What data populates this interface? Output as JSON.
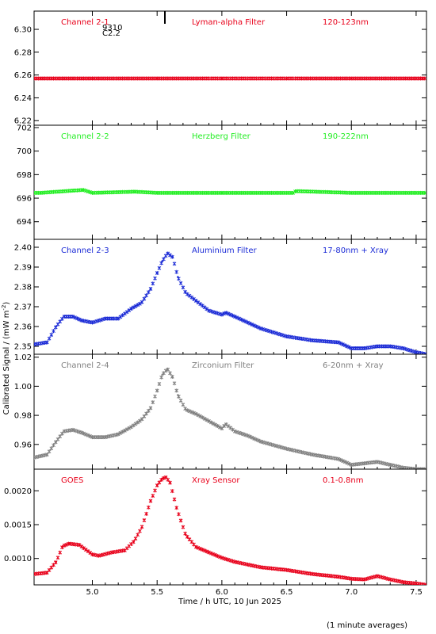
{
  "figure": {
    "xlabel": "Time / h UTC, 10 Jun 2025",
    "ylabel": "Calibrated Signal / (mW m",
    "ylabel_sup": "-2",
    "ylabel_end": ")",
    "footnote": "(1 minute averages)",
    "overlay_top": "9310",
    "overlay_bottom": "C2.2"
  },
  "chart_data": [
    {
      "type": "scatter",
      "channel": "Channel 2-1",
      "filter": "Lyman-alpha Filter",
      "band": "120-123nm",
      "color": "#e8001a",
      "xlim": [
        4.55,
        7.58
      ],
      "ylim": [
        6.216,
        6.316
      ],
      "yticks": [
        6.22,
        6.24,
        6.26,
        6.28,
        6.3
      ],
      "ytick_labels": [
        "6.22",
        "6.24",
        "6.26",
        "6.28",
        "6.30"
      ],
      "x": [
        4.6,
        5.0,
        5.5,
        6.0,
        6.5,
        7.0,
        7.55
      ],
      "y": [
        6.257,
        6.257,
        6.257,
        6.257,
        6.257,
        6.257,
        6.257
      ]
    },
    {
      "type": "scatter",
      "channel": "Channel 2-2",
      "filter": "Herzberg Filter",
      "band": "190-222nm",
      "color": "#22ee22",
      "xlim": [
        4.55,
        7.58
      ],
      "ylim": [
        692.5,
        702.2
      ],
      "yticks": [
        694,
        696,
        698,
        700,
        702
      ],
      "ytick_labels": [
        "694",
        "696",
        "698",
        "700",
        "702"
      ],
      "x": [
        4.6,
        4.93,
        5.0,
        5.33,
        5.5,
        6.0,
        6.55,
        6.57,
        7.0,
        7.55
      ],
      "y": [
        696.45,
        696.7,
        696.45,
        696.55,
        696.45,
        696.45,
        696.45,
        696.6,
        696.45,
        696.45
      ]
    },
    {
      "type": "scatter",
      "channel": "Channel 2-3",
      "filter": "Aluminium Filter",
      "band": "17-80nm + Xray",
      "color": "#1a2ad6",
      "xlim": [
        4.55,
        7.58
      ],
      "ylim": [
        2.346,
        2.404
      ],
      "yticks": [
        2.35,
        2.36,
        2.37,
        2.38,
        2.39,
        2.4
      ],
      "ytick_labels": [
        "2.35",
        "2.36",
        "2.37",
        "2.38",
        "2.39",
        "2.40"
      ],
      "x": [
        4.55,
        4.65,
        4.72,
        4.78,
        4.85,
        4.92,
        5.0,
        5.1,
        5.2,
        5.3,
        5.38,
        5.45,
        5.5,
        5.54,
        5.58,
        5.62,
        5.66,
        5.72,
        5.8,
        5.9,
        6.0,
        6.03,
        6.1,
        6.2,
        6.3,
        6.5,
        6.7,
        6.9,
        7.0,
        7.1,
        7.2,
        7.3,
        7.4,
        7.5,
        7.58
      ],
      "y": [
        2.351,
        2.352,
        2.36,
        2.365,
        2.365,
        2.363,
        2.362,
        2.364,
        2.364,
        2.369,
        2.372,
        2.379,
        2.387,
        2.393,
        2.397,
        2.395,
        2.385,
        2.377,
        2.373,
        2.368,
        2.366,
        2.367,
        2.365,
        2.362,
        2.359,
        2.355,
        2.353,
        2.352,
        2.349,
        2.349,
        2.35,
        2.35,
        2.349,
        2.347,
        2.346
      ]
    },
    {
      "type": "scatter",
      "channel": "Channel 2-4",
      "filter": "Zirconium Filter",
      "band": "6-20nm + Xray",
      "color": "#808080",
      "xlim": [
        4.55,
        7.58
      ],
      "ylim": [
        0.943,
        1.022
      ],
      "yticks": [
        0.96,
        0.98,
        1.0,
        1.02
      ],
      "ytick_labels": [
        "0.96",
        "0.98",
        "1.00",
        "1.02"
      ],
      "x": [
        4.55,
        4.65,
        4.72,
        4.78,
        4.85,
        4.92,
        5.0,
        5.1,
        5.2,
        5.3,
        5.38,
        5.45,
        5.5,
        5.54,
        5.58,
        5.62,
        5.66,
        5.72,
        5.8,
        5.9,
        6.0,
        6.03,
        6.1,
        6.2,
        6.3,
        6.5,
        6.7,
        6.9,
        7.0,
        7.1,
        7.2,
        7.3,
        7.4,
        7.5,
        7.58
      ],
      "y": [
        0.951,
        0.953,
        0.962,
        0.969,
        0.97,
        0.968,
        0.965,
        0.965,
        0.967,
        0.972,
        0.977,
        0.985,
        0.997,
        1.008,
        1.012,
        1.006,
        0.994,
        0.984,
        0.981,
        0.976,
        0.971,
        0.974,
        0.969,
        0.966,
        0.962,
        0.957,
        0.953,
        0.95,
        0.946,
        0.947,
        0.948,
        0.946,
        0.944,
        0.943,
        0.943
      ]
    },
    {
      "type": "scatter",
      "channel": "GOES",
      "filter": "Xray Sensor",
      "band": "0.1-0.8nm",
      "color": "#e8001a",
      "xlim": [
        4.55,
        7.58
      ],
      "ylim": [
        0.00061,
        0.00232
      ],
      "yticks": [
        0.001,
        0.0015,
        0.002
      ],
      "ytick_labels": [
        "0.0010",
        "0.0015",
        "0.0020"
      ],
      "x": [
        4.55,
        4.65,
        4.72,
        4.77,
        4.82,
        4.9,
        5.0,
        5.05,
        5.15,
        5.25,
        5.32,
        5.38,
        5.45,
        5.5,
        5.54,
        5.57,
        5.6,
        5.65,
        5.72,
        5.8,
        5.9,
        6.0,
        6.1,
        6.2,
        6.3,
        6.5,
        6.7,
        6.9,
        7.0,
        7.1,
        7.2,
        7.3,
        7.4,
        7.5,
        7.58
      ],
      "y": [
        0.00077,
        0.00079,
        0.00095,
        0.00118,
        0.00122,
        0.0012,
        0.00106,
        0.00104,
        0.00109,
        0.00112,
        0.00125,
        0.00145,
        0.00185,
        0.00208,
        0.00218,
        0.0022,
        0.00212,
        0.00175,
        0.00135,
        0.00117,
        0.00109,
        0.00101,
        0.00095,
        0.00091,
        0.00087,
        0.00083,
        0.00077,
        0.00073,
        0.0007,
        0.00069,
        0.00074,
        0.00069,
        0.00065,
        0.00063,
        0.00061
      ]
    }
  ],
  "x_axis": {
    "ticks": [
      5.0,
      5.5,
      6.0,
      6.5,
      7.0,
      7.5
    ],
    "tick_labels": [
      "5.0",
      "5.5",
      "6.0",
      "6.5",
      "7.0",
      "7.5"
    ]
  }
}
